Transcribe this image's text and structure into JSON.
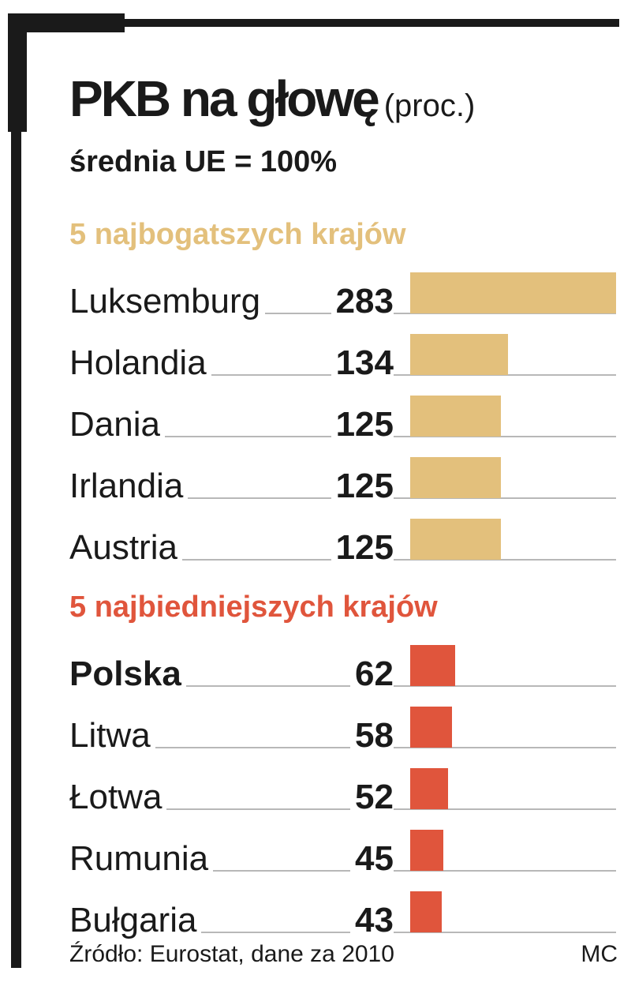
{
  "title": "PKB na głowę",
  "title_unit": "(proc.)",
  "subtitle": "średnia UE = 100%",
  "source": "Źródło: Eurostat, dane za 2010",
  "credit": "MC",
  "colors": {
    "rich": "#e3c07c",
    "poor": "#e0553c",
    "frame": "#1a1a1a"
  },
  "chart_data": {
    "type": "bar",
    "title": "PKB na głowę",
    "subtitle": "średnia UE = 100%",
    "orientation": "horizontal",
    "xlim": [
      0,
      283
    ],
    "groups": [
      {
        "name": "5 najbogatszych krajów",
        "color": "#e3c07c",
        "categories": [
          "Luksemburg",
          "Holandia",
          "Dania",
          "Irlandia",
          "Austria"
        ],
        "values": [
          283,
          134,
          125,
          125,
          125
        ]
      },
      {
        "name": "5 najbiedniejszych krajów",
        "color": "#e0553c",
        "categories": [
          "Polska",
          "Litwa",
          "Łotwa",
          "Rumunia",
          "Bułgaria"
        ],
        "values": [
          62,
          58,
          52,
          45,
          43
        ],
        "bold_category": "Polska"
      }
    ]
  }
}
